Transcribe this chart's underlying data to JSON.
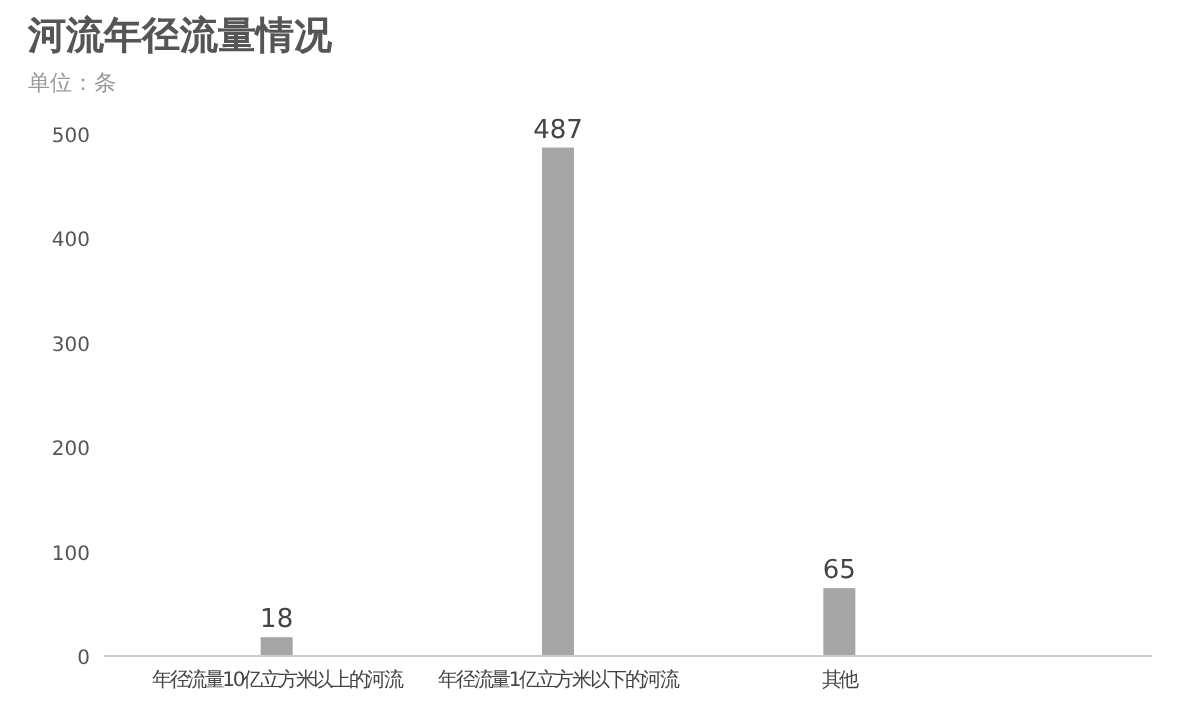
{
  "chart_data": {
    "type": "bar",
    "title": "河流年径流量情况",
    "subtitle": "单位：条",
    "categories": [
      "年径流量10亿立方米以上的河流",
      "年径流量1亿立方米以下的河流",
      "其他"
    ],
    "values": [
      18,
      487,
      65
    ],
    "color": "#a6a6a6",
    "ylim": [
      0,
      500
    ],
    "yticks": [
      0,
      100,
      200,
      300,
      400,
      500
    ],
    "data_labels": true
  }
}
